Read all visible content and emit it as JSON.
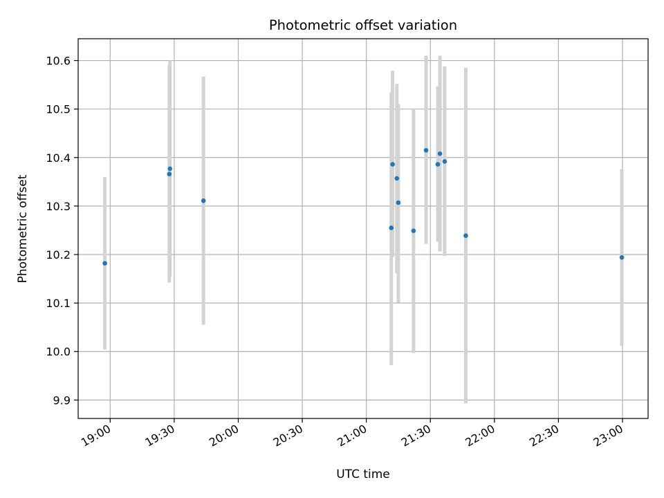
{
  "chart_data": {
    "type": "scatter",
    "title": "Photometric offset variation",
    "xlabel": "UTC time",
    "ylabel": "Photometric offset",
    "grid": true,
    "xlim": [
      "18:45",
      "23:12"
    ],
    "ylim": [
      9.862,
      10.645
    ],
    "x_ticks": [
      "19:00",
      "19:30",
      "20:00",
      "20:30",
      "21:00",
      "21:30",
      "22:00",
      "22:30",
      "23:00"
    ],
    "y_ticks": [
      9.9,
      10.0,
      10.1,
      10.2,
      10.3,
      10.4,
      10.5,
      10.6
    ],
    "point_color": "#1f77b4",
    "errorbar_color": "#d3d3d3",
    "points": [
      {
        "x": "18:57:30",
        "y": 10.182,
        "ylow": 10.004,
        "yhigh": 10.36
      },
      {
        "x": "19:27:42",
        "y": 10.366,
        "ylow": 10.142,
        "yhigh": 10.59
      },
      {
        "x": "19:28:00",
        "y": 10.377,
        "ylow": 10.155,
        "yhigh": 10.6
      },
      {
        "x": "19:43:42",
        "y": 10.311,
        "ylow": 10.055,
        "yhigh": 10.567
      },
      {
        "x": "21:11:42",
        "y": 10.255,
        "ylow": 9.972,
        "yhigh": 10.535
      },
      {
        "x": "21:12:18",
        "y": 10.386,
        "ylow": 10.195,
        "yhigh": 10.579
      },
      {
        "x": "21:14:18",
        "y": 10.357,
        "ylow": 10.161,
        "yhigh": 10.552
      },
      {
        "x": "21:15:00",
        "y": 10.307,
        "ylow": 10.101,
        "yhigh": 10.51
      },
      {
        "x": "21:22:06",
        "y": 10.249,
        "ylow": 9.997,
        "yhigh": 10.5
      },
      {
        "x": "21:28:00",
        "y": 10.415,
        "ylow": 10.222,
        "yhigh": 10.61
      },
      {
        "x": "21:33:30",
        "y": 10.386,
        "ylow": 10.227,
        "yhigh": 10.547
      },
      {
        "x": "21:34:30",
        "y": 10.408,
        "ylow": 10.206,
        "yhigh": 10.61
      },
      {
        "x": "21:36:42",
        "y": 10.392,
        "ylow": 10.197,
        "yhigh": 10.588
      },
      {
        "x": "21:46:36",
        "y": 10.239,
        "ylow": 9.893,
        "yhigh": 10.585
      },
      {
        "x": "22:59:42",
        "y": 10.194,
        "ylow": 10.012,
        "yhigh": 10.376
      }
    ]
  }
}
